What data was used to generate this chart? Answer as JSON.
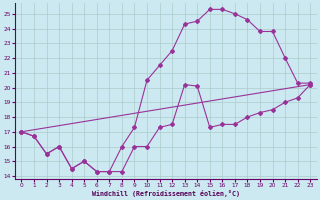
{
  "xlabel": "Windchill (Refroidissement éolien,°C)",
  "bg_color": "#cce8f0",
  "grid_color": "#aacccc",
  "line_color": "#993399",
  "xlim": [
    -0.5,
    23.5
  ],
  "ylim": [
    13.8,
    25.7
  ],
  "yticks": [
    14,
    15,
    16,
    17,
    18,
    19,
    20,
    21,
    22,
    23,
    24,
    25
  ],
  "xticks": [
    0,
    1,
    2,
    3,
    4,
    5,
    6,
    7,
    8,
    9,
    10,
    11,
    12,
    13,
    14,
    15,
    16,
    17,
    18,
    19,
    20,
    21,
    22,
    23
  ],
  "line1_x": [
    0,
    1,
    2,
    3,
    4,
    5,
    6,
    7,
    8,
    9,
    10,
    11,
    12,
    13,
    14,
    15,
    16,
    17,
    18,
    19,
    20,
    21,
    22,
    23
  ],
  "line1_y": [
    17.0,
    16.7,
    15.5,
    16.0,
    14.5,
    15.0,
    14.3,
    14.3,
    14.3,
    16.0,
    16.0,
    17.3,
    17.5,
    20.2,
    20.1,
    17.3,
    17.5,
    17.5,
    18.0,
    18.3,
    18.5,
    19.0,
    19.3,
    20.2
  ],
  "line2_x": [
    0,
    1,
    2,
    3,
    4,
    5,
    6,
    7,
    8,
    9,
    10,
    11,
    12,
    13,
    14,
    15,
    16,
    17,
    18,
    19,
    20,
    21,
    22,
    23
  ],
  "line2_y": [
    17.0,
    16.7,
    15.5,
    16.0,
    14.5,
    15.0,
    14.3,
    14.3,
    16.0,
    17.3,
    20.5,
    21.5,
    22.5,
    24.3,
    24.5,
    25.3,
    25.3,
    25.0,
    24.6,
    23.8,
    23.8,
    22.0,
    20.3,
    20.3
  ],
  "line3_x": [
    0,
    23
  ],
  "line3_y": [
    17.0,
    20.2
  ]
}
